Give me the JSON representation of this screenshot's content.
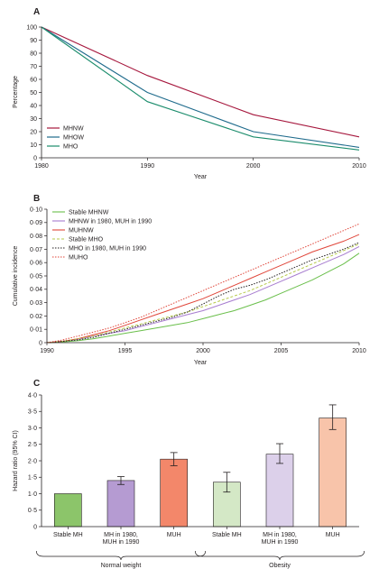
{
  "chart_data": [
    {
      "panel": "A",
      "type": "line",
      "xlabel": "Year",
      "ylabel": "Percentage",
      "xlim": [
        1980,
        2010
      ],
      "ylim": [
        0,
        100
      ],
      "x_ticks": [
        "1980",
        "1990",
        "2000",
        "2010"
      ],
      "y_ticks": [
        "0",
        "10",
        "20",
        "30",
        "40",
        "50",
        "60",
        "70",
        "80",
        "90",
        "100"
      ],
      "legend_position": "bottom-left",
      "series": [
        {
          "name": "MHNW",
          "color": "#a6173d",
          "x": [
            1980,
            1990,
            2000,
            2010
          ],
          "values": [
            100,
            63,
            33,
            16
          ]
        },
        {
          "name": "MHOW",
          "color": "#1f6b8c",
          "x": [
            1980,
            1990,
            2000,
            2010
          ],
          "values": [
            100,
            50,
            20,
            8
          ]
        },
        {
          "name": "MHO",
          "color": "#1b8c6c",
          "x": [
            1980,
            1990,
            2000,
            2010
          ],
          "values": [
            100,
            43,
            16,
            6
          ]
        }
      ]
    },
    {
      "panel": "B",
      "type": "line",
      "xlabel": "Year",
      "ylabel": "Cumulative incidence",
      "xlim": [
        1990,
        2010
      ],
      "ylim": [
        0,
        0.1
      ],
      "x_ticks": [
        "1990",
        "1995",
        "2000",
        "2005",
        "2010"
      ],
      "y_ticks": [
        "0",
        "0·01",
        "0·02",
        "0·03",
        "0·04",
        "0·05",
        "0·06",
        "0·07",
        "0·08",
        "0·09",
        "0·10"
      ],
      "legend_position": "top-left",
      "series": [
        {
          "name": "Stable MHNW",
          "color": "#6abf4b",
          "dash": "solid",
          "x": [
            1990,
            1991,
            1992,
            1993,
            1994,
            1995,
            1996,
            1997,
            1998,
            1999,
            2000,
            2001,
            2002,
            2003,
            2004,
            2005,
            2006,
            2007,
            2008,
            2009,
            2010
          ],
          "values": [
            0,
            0.0005,
            0.0015,
            0.003,
            0.005,
            0.007,
            0.009,
            0.011,
            0.013,
            0.015,
            0.018,
            0.021,
            0.024,
            0.028,
            0.032,
            0.037,
            0.042,
            0.047,
            0.053,
            0.059,
            0.067
          ]
        },
        {
          "name": "MHNW in 1980, MUH in 1990",
          "color": "#a77ccf",
          "dash": "solid",
          "x": [
            1990,
            1991,
            1992,
            1993,
            1994,
            1995,
            1996,
            1997,
            1998,
            1999,
            2000,
            2001,
            2002,
            2003,
            2004,
            2005,
            2006,
            2007,
            2008,
            2009,
            2010
          ],
          "values": [
            0,
            0.001,
            0.0025,
            0.005,
            0.007,
            0.009,
            0.012,
            0.015,
            0.018,
            0.021,
            0.024,
            0.028,
            0.032,
            0.036,
            0.041,
            0.046,
            0.051,
            0.056,
            0.061,
            0.066,
            0.072
          ]
        },
        {
          "name": "MUHNW",
          "color": "#e0463a",
          "dash": "solid",
          "x": [
            1990,
            1991,
            1992,
            1993,
            1994,
            1995,
            1996,
            1997,
            1998,
            1999,
            2000,
            2001,
            2002,
            2003,
            2004,
            2005,
            2006,
            2007,
            2008,
            2009,
            2010
          ],
          "values": [
            0,
            0.001,
            0.003,
            0.006,
            0.009,
            0.013,
            0.017,
            0.021,
            0.025,
            0.029,
            0.033,
            0.038,
            0.043,
            0.048,
            0.053,
            0.058,
            0.063,
            0.068,
            0.072,
            0.076,
            0.081
          ]
        },
        {
          "name": "Stable MHO",
          "color": "#b6c94a",
          "dash": "dash",
          "x": [
            1990,
            1991,
            1992,
            1993,
            1994,
            1995,
            1996,
            1997,
            1998,
            1999,
            2000,
            2001,
            2002,
            2003,
            2004,
            2005,
            2006,
            2007,
            2008,
            2009,
            2010
          ],
          "values": [
            0,
            0.001,
            0.003,
            0.005,
            0.008,
            0.011,
            0.014,
            0.017,
            0.02,
            0.023,
            0.027,
            0.031,
            0.035,
            0.039,
            0.044,
            0.049,
            0.054,
            0.059,
            0.064,
            0.069,
            0.074
          ]
        },
        {
          "name": "MHO in 1980, MUH in 1990",
          "color": "#231f20",
          "dash": "dot",
          "x": [
            1990,
            1991,
            1992,
            1993,
            1994,
            1995,
            1996,
            1997,
            1998,
            1999,
            2000,
            2001,
            2002,
            2003,
            2004,
            2005,
            2006,
            2007,
            2008,
            2009,
            2010
          ],
          "values": [
            0,
            0.001,
            0.002,
            0.004,
            0.007,
            0.01,
            0.013,
            0.016,
            0.019,
            0.023,
            0.029,
            0.035,
            0.04,
            0.043,
            0.047,
            0.052,
            0.057,
            0.062,
            0.066,
            0.07,
            0.075
          ]
        },
        {
          "name": "MUHO",
          "color": "#e0463a",
          "dash": "dot",
          "x": [
            1990,
            1991,
            1992,
            1993,
            1994,
            1995,
            1996,
            1997,
            1998,
            1999,
            2000,
            2001,
            2002,
            2003,
            2004,
            2005,
            2006,
            2007,
            2008,
            2009,
            2010
          ],
          "values": [
            0,
            0.002,
            0.005,
            0.008,
            0.011,
            0.015,
            0.019,
            0.024,
            0.029,
            0.034,
            0.039,
            0.044,
            0.049,
            0.054,
            0.059,
            0.064,
            0.069,
            0.074,
            0.079,
            0.084,
            0.089
          ]
        }
      ]
    },
    {
      "panel": "C",
      "type": "bar",
      "ylabel": "Hazard ratio (95% CI)",
      "ylim": [
        0,
        4.0
      ],
      "y_ticks": [
        "0",
        "0·5",
        "1·0",
        "1·5",
        "2·0",
        "2·5",
        "3·0",
        "3·5",
        "4·0"
      ],
      "categories": [
        "Stable MH",
        "MH in 1980,\nMUH in 1990",
        "MUH",
        "Stable MH",
        "MH in 1980,\nMUH in 1990",
        "MUH"
      ],
      "values": [
        1.0,
        1.4,
        2.05,
        1.35,
        2.2,
        3.3
      ],
      "ci_low": [
        1.0,
        1.28,
        1.85,
        1.05,
        1.92,
        2.95
      ],
      "ci_high": [
        1.0,
        1.52,
        2.25,
        1.65,
        2.52,
        3.7
      ],
      "colors": [
        "#8cc56a",
        "#b59bd2",
        "#f3876a",
        "#d4e8c6",
        "#dcd0ea",
        "#f8c4aa"
      ],
      "groups": [
        {
          "label": "Normal weight",
          "indices": [
            0,
            1,
            2
          ]
        },
        {
          "label": "Obesity",
          "indices": [
            3,
            4,
            5
          ]
        }
      ]
    }
  ]
}
